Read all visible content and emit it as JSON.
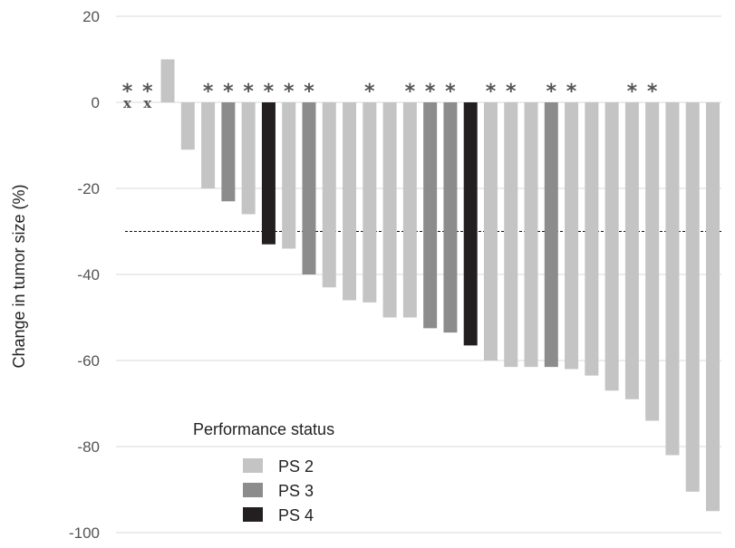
{
  "chart_data": {
    "type": "bar",
    "title": "",
    "xlabel": "",
    "ylabel": "Change in tumor size (%)",
    "ylim": [
      -100,
      20
    ],
    "yticks": [
      20,
      0,
      -20,
      -40,
      -60,
      -80,
      -100
    ],
    "ytick_labels": [
      "20",
      "0",
      "-20",
      "-40",
      "-60",
      "-80",
      "-100"
    ],
    "grid": true,
    "reference_line": -30,
    "legend": {
      "title": "Performance status",
      "placement": "bottom-left",
      "items": [
        {
          "label": "PS 2",
          "color": "#c4c4c4"
        },
        {
          "label": "PS 3",
          "color": "#8c8c8c"
        },
        {
          "label": "PS 4",
          "color": "#231f20"
        }
      ]
    },
    "asterisk_symbol": "*",
    "x_symbol": "x",
    "bars": [
      {
        "value": 0,
        "ps": "PS 2",
        "asterisk": true,
        "x_mark": true
      },
      {
        "value": 0,
        "ps": "PS 2",
        "asterisk": true,
        "x_mark": true
      },
      {
        "value": 10,
        "ps": "PS 2",
        "asterisk": false,
        "x_mark": false
      },
      {
        "value": -11,
        "ps": "PS 2",
        "asterisk": false,
        "x_mark": false
      },
      {
        "value": -20,
        "ps": "PS 2",
        "asterisk": true,
        "x_mark": false
      },
      {
        "value": -23,
        "ps": "PS 3",
        "asterisk": true,
        "x_mark": false
      },
      {
        "value": -26,
        "ps": "PS 2",
        "asterisk": true,
        "x_mark": false
      },
      {
        "value": -33,
        "ps": "PS 4",
        "asterisk": true,
        "x_mark": false
      },
      {
        "value": -34,
        "ps": "PS 2",
        "asterisk": true,
        "x_mark": false
      },
      {
        "value": -40,
        "ps": "PS 3",
        "asterisk": true,
        "x_mark": false
      },
      {
        "value": -43,
        "ps": "PS 2",
        "asterisk": false,
        "x_mark": false
      },
      {
        "value": -46,
        "ps": "PS 2",
        "asterisk": false,
        "x_mark": false
      },
      {
        "value": -46.5,
        "ps": "PS 2",
        "asterisk": true,
        "x_mark": false
      },
      {
        "value": -50,
        "ps": "PS 2",
        "asterisk": false,
        "x_mark": false
      },
      {
        "value": -50,
        "ps": "PS 2",
        "asterisk": true,
        "x_mark": false
      },
      {
        "value": -52.5,
        "ps": "PS 3",
        "asterisk": true,
        "x_mark": false
      },
      {
        "value": -53.5,
        "ps": "PS 3",
        "asterisk": true,
        "x_mark": false
      },
      {
        "value": -56.5,
        "ps": "PS 4",
        "asterisk": false,
        "x_mark": false
      },
      {
        "value": -60,
        "ps": "PS 2",
        "asterisk": true,
        "x_mark": false
      },
      {
        "value": -61.5,
        "ps": "PS 2",
        "asterisk": true,
        "x_mark": false
      },
      {
        "value": -61.5,
        "ps": "PS 2",
        "asterisk": false,
        "x_mark": false
      },
      {
        "value": -61.5,
        "ps": "PS 3",
        "asterisk": true,
        "x_mark": false
      },
      {
        "value": -62,
        "ps": "PS 2",
        "asterisk": true,
        "x_mark": false
      },
      {
        "value": -63.5,
        "ps": "PS 2",
        "asterisk": false,
        "x_mark": false
      },
      {
        "value": -67,
        "ps": "PS 2",
        "asterisk": false,
        "x_mark": false
      },
      {
        "value": -69,
        "ps": "PS 2",
        "asterisk": true,
        "x_mark": false
      },
      {
        "value": -74,
        "ps": "PS 2",
        "asterisk": true,
        "x_mark": false
      },
      {
        "value": -82,
        "ps": "PS 2",
        "asterisk": false,
        "x_mark": false
      },
      {
        "value": -90.5,
        "ps": "PS 2",
        "asterisk": false,
        "x_mark": false
      },
      {
        "value": -95,
        "ps": "PS 2",
        "asterisk": false,
        "x_mark": false
      }
    ]
  }
}
